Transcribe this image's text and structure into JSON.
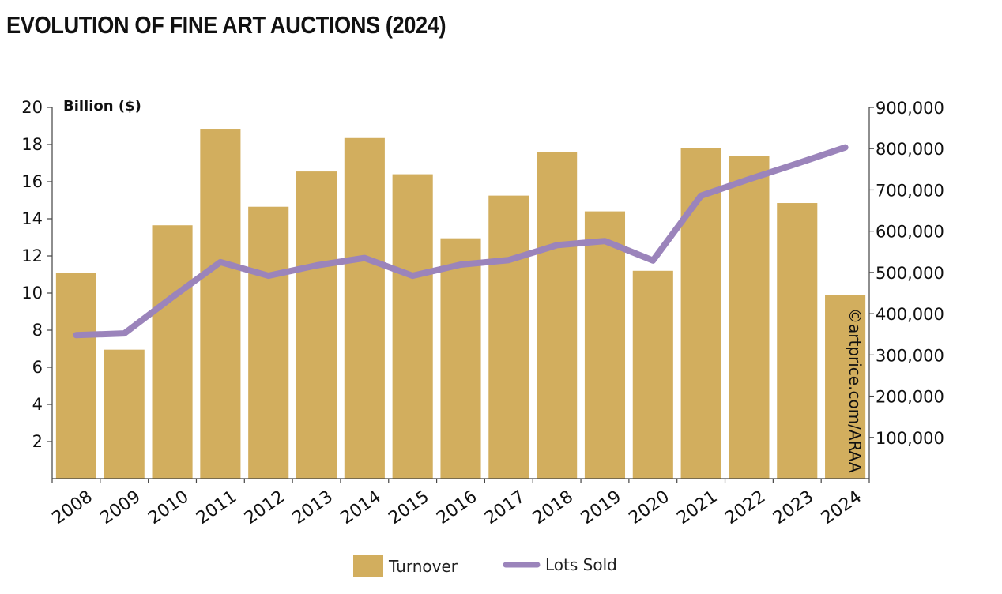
{
  "chart_data": {
    "type": "bar",
    "title": "EVOLUTION OF FINE ART AUCTIONS (2024)",
    "ylabel": "Billion ($)",
    "categories": [
      "2008",
      "2009",
      "2010",
      "2011",
      "2012",
      "2013",
      "2014",
      "2015",
      "2016",
      "2017",
      "2018",
      "2019",
      "2020",
      "2021",
      "2022",
      "2023",
      "2024"
    ],
    "series": [
      {
        "name": "Turnover",
        "type": "bar",
        "axis": "left",
        "color": "#d2ae5e",
        "values": [
          11.1,
          6.95,
          13.65,
          18.85,
          14.65,
          16.55,
          18.35,
          16.4,
          12.95,
          15.25,
          17.6,
          14.4,
          11.2,
          17.8,
          17.4,
          14.85,
          9.9
        ]
      },
      {
        "name": "Lots Sold",
        "type": "line",
        "axis": "right",
        "color": "#9b84bb",
        "values": [
          348000,
          352000,
          440000,
          525000,
          492000,
          517000,
          535000,
          492000,
          519000,
          530000,
          566000,
          576000,
          529000,
          686000,
          726000,
          764000,
          803000
        ]
      }
    ],
    "ylim_left": [
      0,
      20
    ],
    "yticks_left": [
      "2",
      "4",
      "6",
      "8",
      "10",
      "12",
      "14",
      "16",
      "18",
      "20"
    ],
    "ylim_right": [
      0,
      900000
    ],
    "yticks_right": [
      "100,000",
      "200,000",
      "300,000",
      "400,000",
      "500,000",
      "600,000",
      "700,000",
      "800,000",
      "900,000"
    ],
    "grid": false,
    "legend_position": "bottom",
    "credit": "©artprice.com/ARAA"
  }
}
